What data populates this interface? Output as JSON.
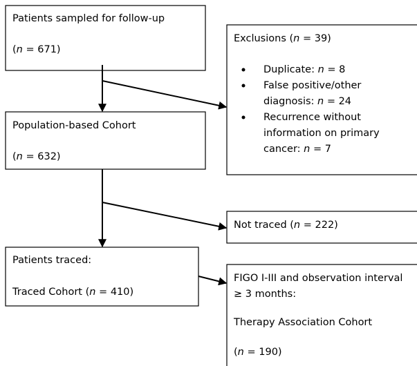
{
  "nodes": [
    {
      "lines": [
        [
          {
            "text": "Patients sampled for follow-up"
          }
        ],
        [
          {
            "text": "("
          },
          {
            "text": "n",
            "italic": true
          },
          {
            "text": " = 671)"
          }
        ]
      ]
    },
    {
      "lines": [
        [
          {
            "text": "Exclusions ("
          },
          {
            "text": "n",
            "italic": true
          },
          {
            "text": " = 39)"
          }
        ]
      ],
      "bullets": [
        [
          [
            {
              "text": "Duplicate: "
            },
            {
              "text": "n",
              "italic": true
            },
            {
              "text": " = 8"
            }
          ]
        ],
        [
          [
            {
              "text": "False positive/other"
            }
          ],
          [
            {
              "text": "diagnosis: "
            },
            {
              "text": "n",
              "italic": true
            },
            {
              "text": " = 24"
            }
          ]
        ],
        [
          [
            {
              "text": "Recurrence without"
            }
          ],
          [
            {
              "text": "information on primary"
            }
          ],
          [
            {
              "text": "cancer: "
            },
            {
              "text": "n",
              "italic": true
            },
            {
              "text": " = 7"
            }
          ]
        ]
      ]
    },
    {
      "lines": [
        [
          {
            "text": "Population-based Cohort"
          }
        ],
        [
          {
            "text": "("
          },
          {
            "text": "n",
            "italic": true
          },
          {
            "text": " = 632)"
          }
        ]
      ]
    },
    {
      "lines": [
        [
          {
            "text": "Not traced ("
          },
          {
            "text": "n",
            "italic": true
          },
          {
            "text": " = 222)"
          }
        ]
      ]
    },
    {
      "lines": [
        [
          {
            "text": "Patients traced:"
          }
        ],
        [
          {
            "text": "Traced Cohort ("
          },
          {
            "text": "n",
            "italic": true
          },
          {
            "text": " = 410)"
          }
        ]
      ]
    },
    {
      "lines": [
        [
          {
            "text": "FIGO I-III and observation interval"
          }
        ],
        [
          {
            "text": "≥ 3 months:"
          }
        ],
        [
          {
            "text": "Therapy Association Cohort"
          }
        ],
        [
          {
            "text": "("
          },
          {
            "text": "n",
            "italic": true
          },
          {
            "text": " = 190)"
          }
        ]
      ]
    }
  ]
}
